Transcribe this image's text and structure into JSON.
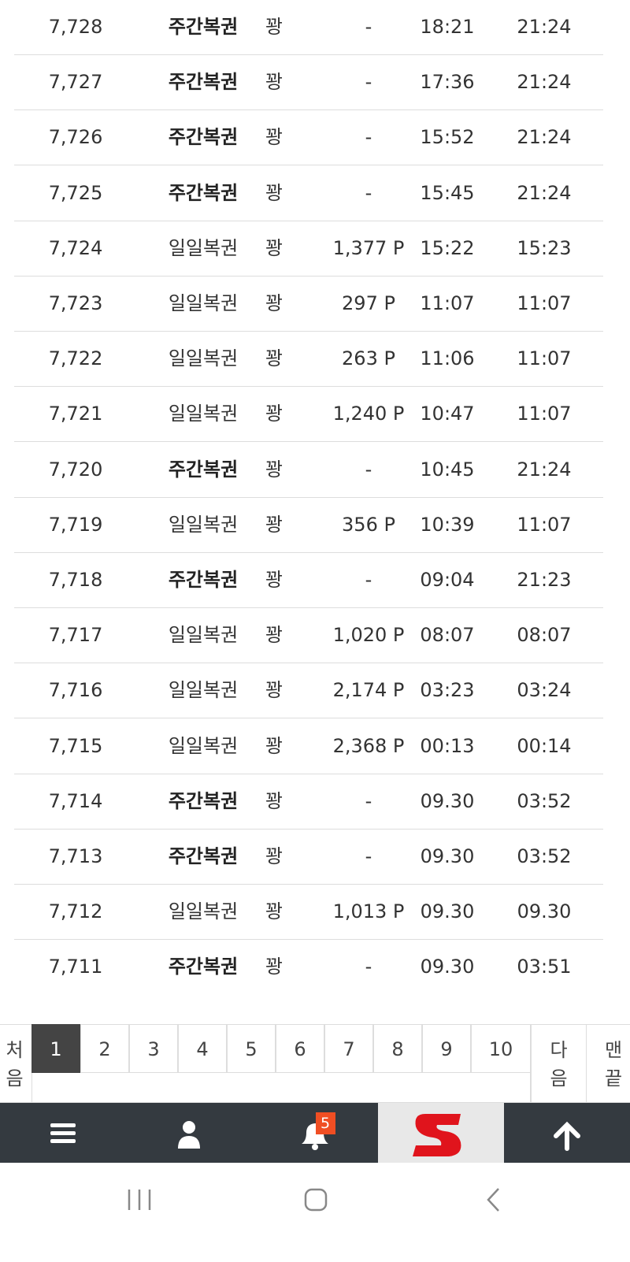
{
  "table": {
    "rows": [
      {
        "cells": [
          "7,728",
          "주간복권",
          "꽝",
          "-",
          "18:21",
          "21:24"
        ],
        "bold": true
      },
      {
        "cells": [
          "7,727",
          "주간복권",
          "꽝",
          "-",
          "17:36",
          "21:24"
        ],
        "bold": true
      },
      {
        "cells": [
          "7,726",
          "주간복권",
          "꽝",
          "-",
          "15:52",
          "21:24"
        ],
        "bold": true
      },
      {
        "cells": [
          "7,725",
          "주간복권",
          "꽝",
          "-",
          "15:45",
          "21:24"
        ],
        "bold": true
      },
      {
        "cells": [
          "7,724",
          "일일복권",
          "꽝",
          "1,377 P",
          "15:22",
          "15:23"
        ],
        "bold": false
      },
      {
        "cells": [
          "7,723",
          "일일복권",
          "꽝",
          "297 P",
          "11:07",
          "11:07"
        ],
        "bold": false
      },
      {
        "cells": [
          "7,722",
          "일일복권",
          "꽝",
          "263 P",
          "11:06",
          "11:07"
        ],
        "bold": false
      },
      {
        "cells": [
          "7,721",
          "일일복권",
          "꽝",
          "1,240 P",
          "10:47",
          "11:07"
        ],
        "bold": false
      },
      {
        "cells": [
          "7,720",
          "주간복권",
          "꽝",
          "-",
          "10:45",
          "21:24"
        ],
        "bold": true
      },
      {
        "cells": [
          "7,719",
          "일일복권",
          "꽝",
          "356 P",
          "10:39",
          "11:07"
        ],
        "bold": false
      },
      {
        "cells": [
          "7,718",
          "주간복권",
          "꽝",
          "-",
          "09:04",
          "21:23"
        ],
        "bold": true
      },
      {
        "cells": [
          "7,717",
          "일일복권",
          "꽝",
          "1,020 P",
          "08:07",
          "08:07"
        ],
        "bold": false
      },
      {
        "cells": [
          "7,716",
          "일일복권",
          "꽝",
          "2,174 P",
          "03:23",
          "03:24"
        ],
        "bold": false
      },
      {
        "cells": [
          "7,715",
          "일일복권",
          "꽝",
          "2,368 P",
          "00:13",
          "00:14"
        ],
        "bold": false
      },
      {
        "cells": [
          "7,714",
          "주간복권",
          "꽝",
          "-",
          "09.30",
          "03:52"
        ],
        "bold": true
      },
      {
        "cells": [
          "7,713",
          "주간복권",
          "꽝",
          "-",
          "09.30",
          "03:52"
        ],
        "bold": true
      },
      {
        "cells": [
          "7,712",
          "일일복권",
          "꽝",
          "1,013 P",
          "09.30",
          "09.30"
        ],
        "bold": false
      },
      {
        "cells": [
          "7,711",
          "주간복권",
          "꽝",
          "-",
          "09.30",
          "03:51"
        ],
        "bold": true
      }
    ]
  },
  "pagination": {
    "first": "처음",
    "pages": [
      "1",
      "2",
      "3",
      "4",
      "5",
      "6",
      "7",
      "8",
      "9",
      "10"
    ],
    "current": 0,
    "next": "다음",
    "last": "맨끝"
  },
  "nav": {
    "badge": "5"
  }
}
